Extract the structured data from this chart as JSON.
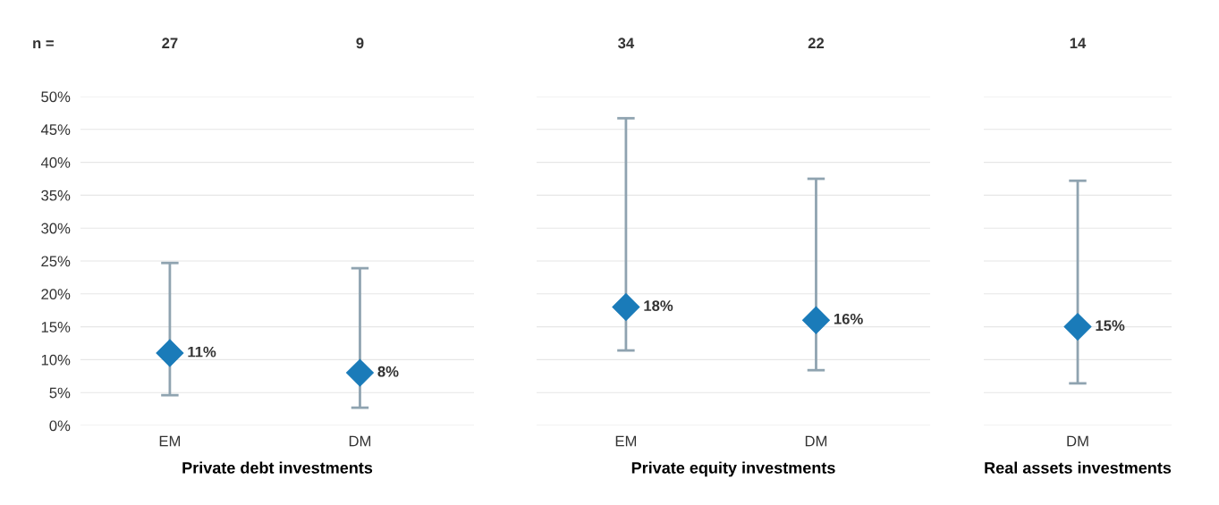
{
  "chart_data": [
    {
      "type": "scatter",
      "xlabel": "Private debt investments",
      "categories": [
        "EM",
        "DM"
      ],
      "series": [
        {
          "color": "#1a7bb9",
          "values": [
            11,
            8
          ],
          "errors": [
            [
              4.6,
              24.7
            ],
            [
              2.7,
              23.9
            ]
          ]
        }
      ],
      "ylim": [
        0,
        50
      ],
      "yticks": [
        {
          "value": 0,
          "label": "0%"
        },
        {
          "value": 5,
          "label": "5%"
        },
        {
          "value": 10,
          "label": "10%"
        },
        {
          "value": 15,
          "label": "15%"
        },
        {
          "value": 20,
          "label": "20%"
        },
        {
          "value": 25,
          "label": "25%"
        },
        {
          "value": 30,
          "label": "30%"
        },
        {
          "value": 35,
          "label": "35%"
        },
        {
          "value": 40,
          "label": "40%"
        },
        {
          "value": 45,
          "label": "45%"
        },
        {
          "value": 50,
          "label": "50%"
        }
      ],
      "marker": "diamond",
      "grid": "y",
      "legend": false,
      "value_labels": [
        "11%",
        "8%"
      ],
      "annotations": [
        "n =",
        "27",
        "9"
      ]
    },
    {
      "type": "scatter",
      "xlabel": "Private equity investments",
      "categories": [
        "EM",
        "DM"
      ],
      "series": [
        {
          "color": "#1a7bb9",
          "values": [
            18,
            16
          ],
          "errors": [
            [
              11.4,
              46.7
            ],
            [
              8.4,
              37.5
            ]
          ]
        }
      ],
      "ylim": [
        0,
        50
      ],
      "yticks": [
        0,
        5,
        10,
        15,
        20,
        25,
        30,
        35,
        40,
        45,
        50
      ],
      "tick_labels": "x",
      "marker": "diamond",
      "grid": "y",
      "legend": false,
      "value_labels": [
        "18%",
        "16%"
      ],
      "annotations": [
        "34",
        "22"
      ]
    },
    {
      "type": "scatter",
      "xlabel": "Real assets investments",
      "categories": [
        "DM"
      ],
      "series": [
        {
          "color": "#1a7bb9",
          "values": [
            15
          ],
          "errors": [
            [
              6.4,
              37.2
            ]
          ]
        }
      ],
      "ylim": [
        0,
        50
      ],
      "yticks": [
        0,
        5,
        10,
        15,
        20,
        25,
        30,
        35,
        40,
        45,
        50
      ],
      "tick_labels": "x",
      "marker": "diamond",
      "grid": "y",
      "legend": false,
      "value_labels": [
        "15%"
      ],
      "annotations": [
        "14"
      ]
    }
  ]
}
